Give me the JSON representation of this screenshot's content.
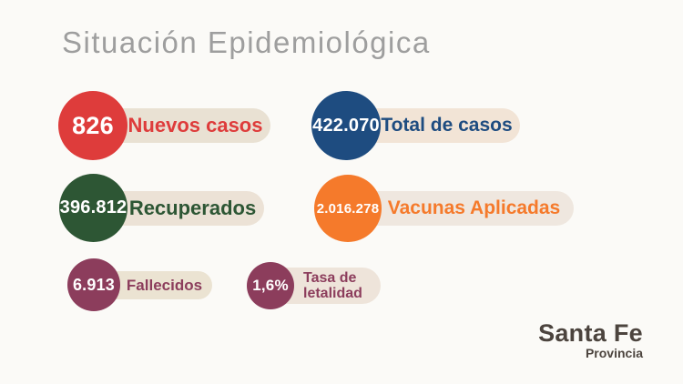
{
  "page": {
    "title": "Situación Epidemiológica",
    "background": "#fbfaf7"
  },
  "chart_data": {
    "type": "table",
    "title": "Situación Epidemiológica",
    "categories": [
      "Nuevos casos",
      "Total de casos",
      "Recuperados",
      "Vacunas Aplicadas",
      "Fallecidos",
      "Tasa de letalidad"
    ],
    "values": [
      826,
      422070,
      396812,
      2016278,
      6913,
      "1,6%"
    ],
    "value_labels": [
      "826",
      "422.070",
      "396.812",
      "2.016.278",
      "6.913",
      "1,6%"
    ]
  },
  "stats": [
    {
      "id": "nuevos-casos",
      "value": "826",
      "label": "Nuevos casos",
      "color": "#de3c3b",
      "pill_color": "#e9e1d3"
    },
    {
      "id": "total-casos",
      "value": "422.070",
      "label": "Total de casos",
      "color": "#1e4c80",
      "pill_color": "#f2e4d6"
    },
    {
      "id": "recuperados",
      "value": "396.812",
      "label": "Recuperados",
      "color": "#2d5634",
      "pill_color": "#ece2d6"
    },
    {
      "id": "vacunas",
      "value": "2.016.278",
      "label": "Vacunas Aplicadas",
      "color": "#f57a2b",
      "pill_color": "#efe7df"
    },
    {
      "id": "fallecidos",
      "value": "6.913",
      "label": "Fallecidos",
      "color": "#8c3d5c",
      "pill_color": "#ebe3d2"
    },
    {
      "id": "tasa-letalidad",
      "value": "1,6%",
      "label": "Tasa de letalidad",
      "label_lines": [
        "Tasa de",
        "letalidad"
      ],
      "color": "#8c3d5c",
      "pill_color": "#eee4da"
    }
  ],
  "logo": {
    "name": "Santa Fe",
    "subtitle": "Provincia",
    "color": "#4c443e"
  }
}
